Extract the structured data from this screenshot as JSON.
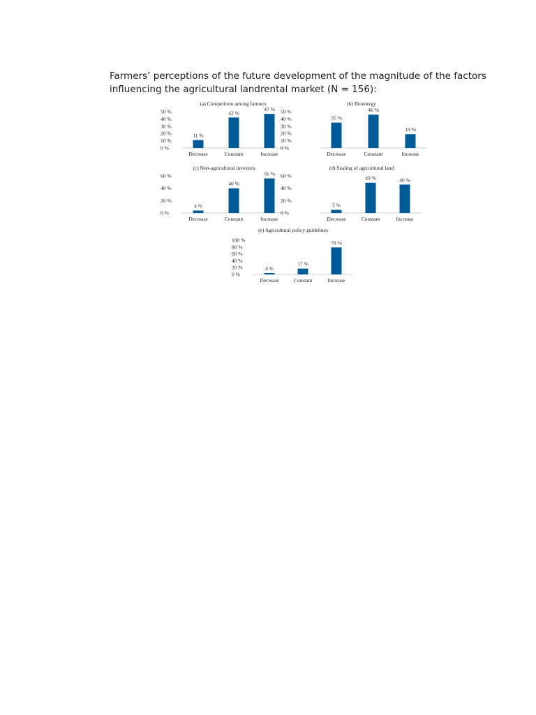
{
  "header": {
    "title_line1": "Farmers’ perceptions of the future development of the magnitude of the factors",
    "title_line2": "influencing the agricultural landrental market (N = 156):"
  },
  "colors": {
    "bar": "#005a96",
    "axis": "#999999"
  },
  "chart_data": [
    {
      "type": "bar",
      "title": "(a) Competition among farmers",
      "categories": [
        "Decrease",
        "Constant",
        "Increase"
      ],
      "values": [
        11,
        42,
        47
      ],
      "data_labels": [
        "11 %",
        "42 %",
        "47 %"
      ],
      "yticks": [
        "0 %",
        "10 %",
        "20 %",
        "30 %",
        "40 %",
        "50 %"
      ],
      "ylim": [
        0,
        50
      ],
      "xlabel": "",
      "ylabel": ""
    },
    {
      "type": "bar",
      "title": "(b) Bioenergy",
      "categories": [
        "Decrease",
        "Constant",
        "Increase"
      ],
      "values": [
        35,
        46,
        19
      ],
      "data_labels": [
        "35 %",
        "46 %",
        "19 %"
      ],
      "yticks": [
        "0 %",
        "10 %",
        "20 %",
        "30 %",
        "40 %",
        "50 %"
      ],
      "ylim": [
        0,
        50
      ],
      "xlabel": "",
      "ylabel": ""
    },
    {
      "type": "bar",
      "title": "(c) Non-agricultural investors",
      "categories": [
        "Decrease",
        "Constant",
        "Increase"
      ],
      "values": [
        4,
        40,
        56
      ],
      "data_labels": [
        "4 %",
        "40 %",
        "56 %"
      ],
      "yticks": [
        "0 %",
        "20 %",
        "40 %",
        "60 %"
      ],
      "ylim": [
        0,
        60
      ],
      "xlabel": "",
      "ylabel": ""
    },
    {
      "type": "bar",
      "title": "(d) Sealing of agricultural land",
      "categories": [
        "Decrease",
        "Constant",
        "Increase"
      ],
      "values": [
        5,
        49,
        46
      ],
      "data_labels": [
        "5 %",
        "49 %",
        "46 %"
      ],
      "yticks": [
        "0 %",
        "20 %",
        "40 %",
        "60 %"
      ],
      "ylim": [
        0,
        60
      ],
      "xlabel": "",
      "ylabel": ""
    },
    {
      "type": "bar",
      "title": "(e) Agricultural policy guidelines",
      "categories": [
        "Decrease",
        "Constant",
        "Increase"
      ],
      "values": [
        4,
        17,
        79
      ],
      "data_labels": [
        "4 %",
        "17 %",
        "79 %"
      ],
      "yticks": [
        "0 %",
        "20 %",
        "40 %",
        "60 %",
        "80 %",
        "100 %"
      ],
      "ylim": [
        0,
        100
      ],
      "xlabel": "",
      "ylabel": ""
    }
  ]
}
